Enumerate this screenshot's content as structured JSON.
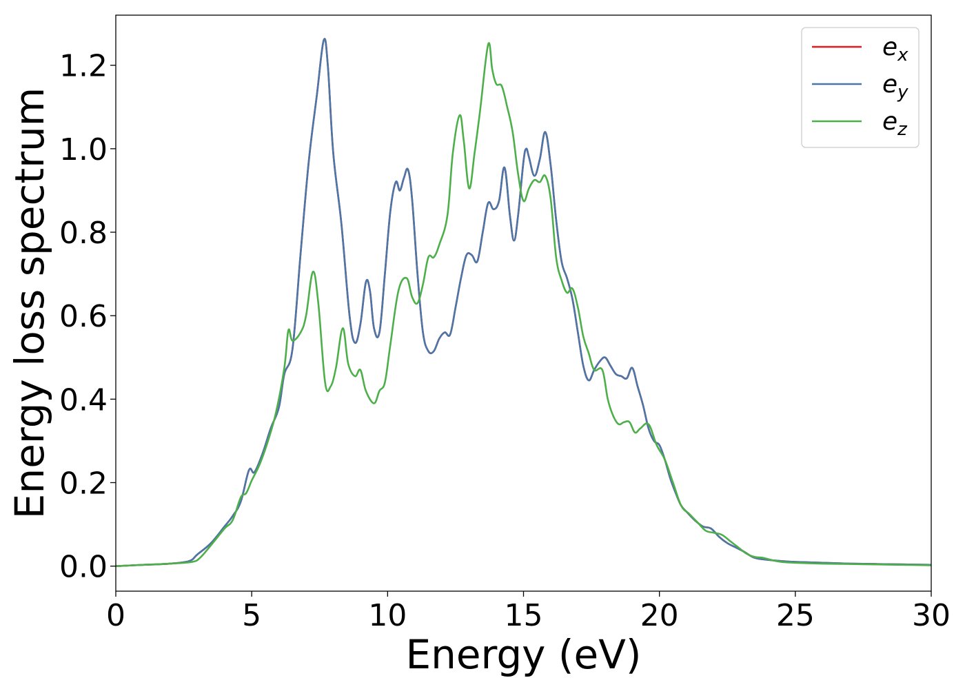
{
  "chart_data": {
    "type": "line",
    "xlabel": "Energy (eV)",
    "ylabel": "Energy loss spectrum",
    "xlim": [
      0,
      30
    ],
    "ylim": [
      -0.06,
      1.32
    ],
    "xticks": [
      0,
      5,
      10,
      15,
      20,
      25,
      30
    ],
    "xtick_labels": [
      "0",
      "5",
      "10",
      "15",
      "20",
      "25",
      "30"
    ],
    "yticks": [
      0.0,
      0.2,
      0.4,
      0.6,
      0.8,
      1.0,
      1.2
    ],
    "ytick_labels": [
      "0.0",
      "0.2",
      "0.4",
      "0.6",
      "0.8",
      "1.0",
      "1.2"
    ],
    "grid": false,
    "legend_position": "top-right",
    "series": [
      {
        "name": "e_x",
        "legend_base": "e",
        "legend_sub": "x",
        "color": "#e41a1c",
        "x": [
          0,
          1,
          2,
          2.7,
          3.0,
          3.5,
          4.0,
          4.3,
          4.6,
          4.9,
          5.1,
          5.4,
          5.7,
          6.0,
          6.2,
          6.5,
          6.8,
          7.1,
          7.4,
          7.65,
          7.8,
          8.0,
          8.3,
          8.6,
          8.8,
          9.0,
          9.2,
          9.35,
          9.5,
          9.7,
          9.9,
          10.1,
          10.3,
          10.45,
          10.6,
          10.75,
          10.9,
          11.1,
          11.3,
          11.5,
          11.7,
          11.9,
          12.1,
          12.3,
          12.5,
          12.7,
          12.9,
          13.1,
          13.3,
          13.5,
          13.7,
          13.9,
          14.1,
          14.3,
          14.5,
          14.65,
          14.8,
          15.0,
          15.1,
          15.2,
          15.4,
          15.6,
          15.8,
          16.0,
          16.2,
          16.4,
          16.6,
          16.8,
          17.0,
          17.2,
          17.4,
          17.6,
          17.8,
          18.0,
          18.2,
          18.4,
          18.6,
          18.8,
          19.0,
          19.2,
          19.4,
          19.6,
          19.8,
          20.0,
          20.2,
          20.4,
          20.6,
          20.8,
          21.0,
          21.3,
          21.6,
          21.9,
          22.2,
          22.5,
          22.8,
          23.1,
          23.5,
          24.0,
          24.5,
          25,
          26,
          27,
          28,
          29,
          30
        ],
        "y": [
          0.0,
          0.003,
          0.006,
          0.012,
          0.028,
          0.055,
          0.095,
          0.12,
          0.155,
          0.23,
          0.225,
          0.27,
          0.33,
          0.38,
          0.46,
          0.52,
          0.75,
          0.97,
          1.13,
          1.26,
          1.2,
          0.99,
          0.82,
          0.6,
          0.535,
          0.58,
          0.68,
          0.66,
          0.57,
          0.56,
          0.7,
          0.85,
          0.92,
          0.9,
          0.93,
          0.95,
          0.88,
          0.7,
          0.56,
          0.515,
          0.515,
          0.545,
          0.56,
          0.555,
          0.62,
          0.69,
          0.745,
          0.745,
          0.73,
          0.8,
          0.87,
          0.855,
          0.875,
          0.955,
          0.84,
          0.78,
          0.84,
          0.97,
          1.0,
          0.98,
          0.935,
          0.975,
          1.04,
          0.96,
          0.83,
          0.73,
          0.69,
          0.64,
          0.56,
          0.48,
          0.445,
          0.47,
          0.49,
          0.5,
          0.48,
          0.46,
          0.455,
          0.45,
          0.475,
          0.43,
          0.385,
          0.33,
          0.3,
          0.29,
          0.255,
          0.21,
          0.175,
          0.145,
          0.13,
          0.11,
          0.095,
          0.09,
          0.07,
          0.055,
          0.045,
          0.035,
          0.02,
          0.015,
          0.012,
          0.01,
          0.008,
          0.006,
          0.005,
          0.004,
          0.003
        ]
      },
      {
        "name": "e_y",
        "legend_base": "e",
        "legend_sub": "y",
        "color": "#4a76a8",
        "x": [
          0,
          1,
          2,
          2.7,
          3.0,
          3.5,
          4.0,
          4.3,
          4.6,
          4.9,
          5.1,
          5.4,
          5.7,
          6.0,
          6.2,
          6.5,
          6.8,
          7.1,
          7.4,
          7.65,
          7.8,
          8.0,
          8.3,
          8.6,
          8.8,
          9.0,
          9.2,
          9.35,
          9.5,
          9.7,
          9.9,
          10.1,
          10.3,
          10.45,
          10.6,
          10.75,
          10.9,
          11.1,
          11.3,
          11.5,
          11.7,
          11.9,
          12.1,
          12.3,
          12.5,
          12.7,
          12.9,
          13.1,
          13.3,
          13.5,
          13.7,
          13.9,
          14.1,
          14.3,
          14.5,
          14.65,
          14.8,
          15.0,
          15.1,
          15.2,
          15.4,
          15.6,
          15.8,
          16.0,
          16.2,
          16.4,
          16.6,
          16.8,
          17.0,
          17.2,
          17.4,
          17.6,
          17.8,
          18.0,
          18.2,
          18.4,
          18.6,
          18.8,
          19.0,
          19.2,
          19.4,
          19.6,
          19.8,
          20.0,
          20.2,
          20.4,
          20.6,
          20.8,
          21.0,
          21.3,
          21.6,
          21.9,
          22.2,
          22.5,
          22.8,
          23.1,
          23.5,
          24.0,
          24.5,
          25,
          26,
          27,
          28,
          29,
          30
        ],
        "y": [
          0.0,
          0.003,
          0.006,
          0.012,
          0.028,
          0.055,
          0.095,
          0.12,
          0.155,
          0.23,
          0.225,
          0.27,
          0.33,
          0.38,
          0.46,
          0.52,
          0.75,
          0.97,
          1.13,
          1.26,
          1.2,
          0.99,
          0.82,
          0.6,
          0.535,
          0.58,
          0.68,
          0.66,
          0.57,
          0.56,
          0.7,
          0.85,
          0.92,
          0.9,
          0.93,
          0.95,
          0.88,
          0.7,
          0.56,
          0.515,
          0.515,
          0.545,
          0.56,
          0.555,
          0.62,
          0.69,
          0.745,
          0.745,
          0.73,
          0.8,
          0.87,
          0.855,
          0.875,
          0.955,
          0.84,
          0.78,
          0.84,
          0.97,
          1.0,
          0.98,
          0.935,
          0.975,
          1.04,
          0.96,
          0.83,
          0.73,
          0.69,
          0.64,
          0.56,
          0.48,
          0.445,
          0.47,
          0.49,
          0.5,
          0.48,
          0.46,
          0.455,
          0.45,
          0.475,
          0.43,
          0.385,
          0.33,
          0.3,
          0.29,
          0.255,
          0.21,
          0.175,
          0.145,
          0.13,
          0.11,
          0.095,
          0.09,
          0.07,
          0.055,
          0.045,
          0.035,
          0.02,
          0.015,
          0.012,
          0.01,
          0.008,
          0.006,
          0.005,
          0.004,
          0.003
        ]
      },
      {
        "name": "e_z",
        "legend_base": "e",
        "legend_sub": "z",
        "color": "#4daf4a",
        "x": [
          0,
          1,
          2,
          2.8,
          3.1,
          3.5,
          4.0,
          4.3,
          4.6,
          4.8,
          5.0,
          5.3,
          5.6,
          5.9,
          6.2,
          6.35,
          6.5,
          6.8,
          7.0,
          7.25,
          7.45,
          7.7,
          7.9,
          8.1,
          8.35,
          8.55,
          8.8,
          9.0,
          9.2,
          9.5,
          9.7,
          9.9,
          10.1,
          10.4,
          10.7,
          10.9,
          11.1,
          11.3,
          11.5,
          11.7,
          11.9,
          12.2,
          12.4,
          12.65,
          12.8,
          13.0,
          13.2,
          13.4,
          13.7,
          13.85,
          14.0,
          14.2,
          14.4,
          14.6,
          14.8,
          15.0,
          15.2,
          15.4,
          15.6,
          15.8,
          16.0,
          16.2,
          16.4,
          16.6,
          16.8,
          17.0,
          17.2,
          17.4,
          17.6,
          17.9,
          18.1,
          18.3,
          18.5,
          18.7,
          18.9,
          19.1,
          19.3,
          19.6,
          19.9,
          20.2,
          20.5,
          20.8,
          21.1,
          21.4,
          21.7,
          22.0,
          22.3,
          22.6,
          22.9,
          23.2,
          23.5,
          23.8,
          24.1,
          24.5,
          25,
          26,
          27,
          28,
          29,
          30
        ],
        "y": [
          0.0,
          0.003,
          0.006,
          0.01,
          0.02,
          0.05,
          0.09,
          0.11,
          0.165,
          0.175,
          0.205,
          0.245,
          0.3,
          0.37,
          0.475,
          0.565,
          0.54,
          0.56,
          0.6,
          0.705,
          0.63,
          0.44,
          0.43,
          0.475,
          0.57,
          0.485,
          0.455,
          0.47,
          0.42,
          0.39,
          0.42,
          0.44,
          0.53,
          0.66,
          0.69,
          0.645,
          0.63,
          0.675,
          0.74,
          0.74,
          0.77,
          0.84,
          0.99,
          1.08,
          1.02,
          0.905,
          0.99,
          1.09,
          1.25,
          1.19,
          1.155,
          1.15,
          1.1,
          1.04,
          0.94,
          0.875,
          0.905,
          0.925,
          0.92,
          0.935,
          0.88,
          0.74,
          0.685,
          0.655,
          0.665,
          0.62,
          0.55,
          0.51,
          0.47,
          0.47,
          0.4,
          0.36,
          0.34,
          0.345,
          0.345,
          0.32,
          0.33,
          0.34,
          0.29,
          0.255,
          0.2,
          0.145,
          0.125,
          0.105,
          0.085,
          0.08,
          0.075,
          0.06,
          0.045,
          0.03,
          0.022,
          0.02,
          0.015,
          0.01,
          0.008,
          0.006,
          0.005,
          0.004,
          0.003,
          0.002
        ]
      }
    ]
  }
}
